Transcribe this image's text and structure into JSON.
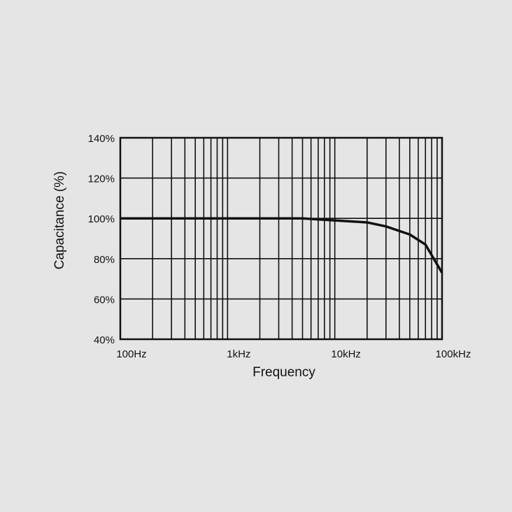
{
  "chart_data": {
    "type": "line",
    "xlabel": "Frequency",
    "ylabel": "Capacitance (%)",
    "log_x": true,
    "grid": true,
    "x": [
      100,
      1000,
      5000,
      10000,
      20000,
      30000,
      50000,
      70000,
      100000
    ],
    "series": [
      {
        "color": "#111111",
        "values": [
          100,
          100,
          100,
          99,
          98,
          96,
          92,
          87,
          73
        ]
      }
    ],
    "xlim": [
      100,
      100000
    ],
    "ylim": [
      40,
      140
    ],
    "xticks": [
      {
        "value": 100,
        "label": "100Hz"
      },
      {
        "value": 1000,
        "label": "1kHz"
      },
      {
        "value": 10000,
        "label": "10kHz"
      },
      {
        "value": 100000,
        "label": "100kHz"
      }
    ],
    "xminorticks": [
      200,
      300,
      400,
      500,
      600,
      700,
      800,
      900,
      2000,
      3000,
      4000,
      5000,
      6000,
      7000,
      8000,
      9000,
      20000,
      30000,
      40000,
      50000,
      60000,
      70000,
      80000,
      90000
    ],
    "yticks": [
      {
        "value": 40,
        "label": "40%"
      },
      {
        "value": 60,
        "label": "60%"
      },
      {
        "value": 80,
        "label": "80%"
      },
      {
        "value": 100,
        "label": "100%"
      },
      {
        "value": 120,
        "label": "120%"
      },
      {
        "value": 140,
        "label": "140%"
      }
    ]
  }
}
